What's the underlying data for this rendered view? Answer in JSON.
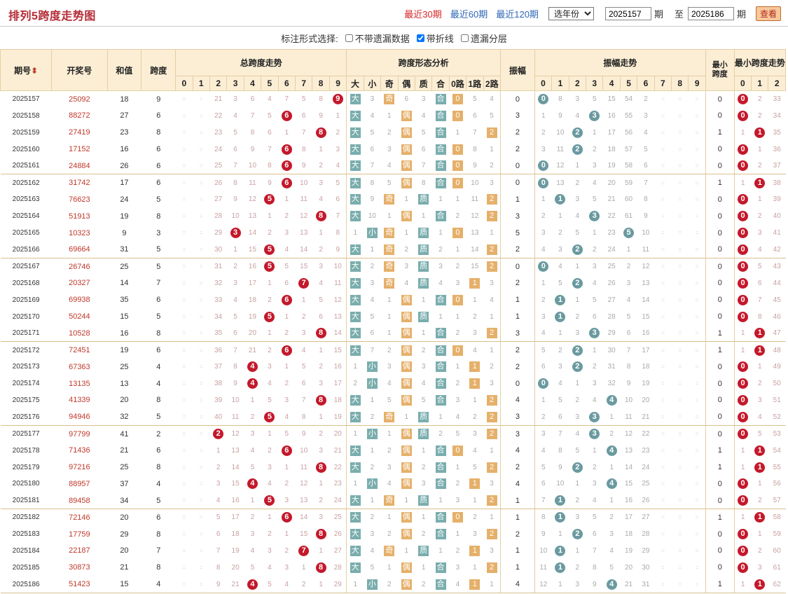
{
  "page": {
    "title": "排列5跨度走势图"
  },
  "nav": {
    "recent30": "最近30期",
    "recent60": "最近60期",
    "recent120": "最近120期",
    "year_select": "选年份",
    "from": "2025157",
    "to": "2025186",
    "qi": "期",
    "zhi": "至",
    "query": "查看"
  },
  "options": {
    "label": "标注形式选择:",
    "opt1": "不带遗漏数据",
    "opt2": "带折线",
    "opt3": "遗漏分层",
    "opt1_checked": false,
    "opt2_checked": true,
    "opt3_checked": false
  },
  "headers": {
    "issue": "期号",
    "draw": "开奖号",
    "sum": "和值",
    "span": "跨度",
    "span_trend": "总跨度走势",
    "shape": "跨度形态分析",
    "amp": "振幅",
    "amp_trend": "振幅走势",
    "min_span": "最小跨度",
    "min_trend": "最小跨度走势",
    "shape_cols": [
      "大",
      "小",
      "奇",
      "偶",
      "质",
      "合",
      "0路",
      "1路",
      "2路"
    ],
    "nums": [
      "0",
      "1",
      "2",
      "3",
      "4",
      "5",
      "6",
      "7",
      "8",
      "9"
    ],
    "min_nums": [
      "0",
      "1",
      "2"
    ]
  },
  "colors": {
    "red": "#c4182b",
    "teal": "#6a9aa0",
    "orange": "#e5b06a"
  },
  "rows": [
    {
      "q": "2025157",
      "n": "25092",
      "h": "18",
      "k": 9,
      "z": 0,
      "m": 0,
      "ks": [
        "⁼",
        "⁼",
        "21",
        "3",
        "6",
        "4",
        "7",
        "5",
        "8",
        "9"
      ],
      "sh": [
        "大",
        "3",
        "奇",
        "6",
        "3",
        "合",
        "0",
        "5",
        "4"
      ],
      "zs": [
        "0",
        "8",
        "3",
        "5",
        "15",
        "54",
        "2",
        "⁼",
        "⁼",
        "⁼"
      ],
      "ms": [
        "0",
        "2",
        "33"
      ]
    },
    {
      "q": "2025158",
      "n": "88272",
      "h": "27",
      "k": 6,
      "z": 3,
      "m": 0,
      "ks": [
        "⁼",
        "⁼",
        "22",
        "4",
        "7",
        "5",
        "6",
        "6",
        "9",
        "1"
      ],
      "sh": [
        "大",
        "4",
        "1",
        "偶",
        "4",
        "合",
        "0",
        "6",
        "5"
      ],
      "zs": [
        "1",
        "9",
        "4",
        "3",
        "16",
        "55",
        "3",
        "⁼",
        "⁼",
        "⁼"
      ],
      "ms": [
        "0",
        "2",
        "34"
      ]
    },
    {
      "q": "2025159",
      "n": "27419",
      "h": "23",
      "k": 8,
      "z": 2,
      "m": 1,
      "ks": [
        "⁼",
        "⁼",
        "23",
        "5",
        "8",
        "6",
        "1",
        "7",
        "8",
        "2"
      ],
      "sh": [
        "大",
        "5",
        "2",
        "偶",
        "5",
        "合",
        "1",
        "7",
        "2"
      ],
      "zs": [
        "2",
        "10",
        "2",
        "1",
        "17",
        "56",
        "4",
        "⁼",
        "⁼",
        "⁼"
      ],
      "ms": [
        "1",
        "1",
        "35"
      ]
    },
    {
      "q": "2025160",
      "n": "17152",
      "h": "16",
      "k": 6,
      "z": 2,
      "m": 0,
      "ks": [
        "⁼",
        "⁼",
        "24",
        "6",
        "9",
        "7",
        "6",
        "8",
        "1",
        "3"
      ],
      "sh": [
        "大",
        "6",
        "3",
        "偶",
        "6",
        "合",
        "0",
        "8",
        "1"
      ],
      "zs": [
        "3",
        "11",
        "2",
        "2",
        "18",
        "57",
        "5",
        "⁼",
        "⁼",
        "⁼"
      ],
      "ms": [
        "0",
        "1",
        "36"
      ]
    },
    {
      "q": "2025161",
      "n": "24884",
      "h": "26",
      "k": 6,
      "z": 0,
      "m": 0,
      "ks": [
        "⁼",
        "⁼",
        "25",
        "7",
        "10",
        "8",
        "6",
        "9",
        "2",
        "4"
      ],
      "sh": [
        "大",
        "7",
        "4",
        "偶",
        "7",
        "合",
        "0",
        "9",
        "2"
      ],
      "zs": [
        "0",
        "12",
        "1",
        "3",
        "19",
        "58",
        "6",
        "⁼",
        "⁼",
        "⁼"
      ],
      "ms": [
        "0",
        "2",
        "37"
      ]
    },
    {
      "q": "2025162",
      "n": "31742",
      "h": "17",
      "k": 6,
      "z": 0,
      "m": 1,
      "ks": [
        "⁼",
        "⁼",
        "26",
        "8",
        "11",
        "9",
        "6",
        "10",
        "3",
        "5"
      ],
      "sh": [
        "大",
        "8",
        "5",
        "偶",
        "8",
        "合",
        "0",
        "10",
        "3"
      ],
      "zs": [
        "0",
        "13",
        "2",
        "4",
        "20",
        "59",
        "7",
        "⁼",
        "⁼",
        "⁼"
      ],
      "ms": [
        "1",
        "1",
        "38"
      ]
    },
    {
      "q": "2025163",
      "n": "76623",
      "h": "24",
      "k": 5,
      "z": 1,
      "m": 0,
      "ks": [
        "⁼",
        "⁼",
        "27",
        "9",
        "12",
        "5",
        "1",
        "11",
        "4",
        "6"
      ],
      "sh": [
        "大",
        "9",
        "奇",
        "1",
        "质",
        "1",
        "1",
        "11",
        "2"
      ],
      "zs": [
        "1",
        "1",
        "3",
        "5",
        "21",
        "60",
        "8",
        "⁼",
        "⁼",
        "⁼"
      ],
      "ms": [
        "0",
        "1",
        "39"
      ]
    },
    {
      "q": "2025164",
      "n": "51913",
      "h": "19",
      "k": 8,
      "z": 3,
      "m": 0,
      "ks": [
        "⁼",
        "⁼",
        "28",
        "10",
        "13",
        "1",
        "2",
        "12",
        "8",
        "7"
      ],
      "sh": [
        "大",
        "10",
        "1",
        "偶",
        "1",
        "合",
        "2",
        "12",
        "2"
      ],
      "zs": [
        "2",
        "1",
        "4",
        "3",
        "22",
        "61",
        "9",
        "⁼",
        "⁼",
        "⁼"
      ],
      "ms": [
        "0",
        "2",
        "40"
      ]
    },
    {
      "q": "2025165",
      "n": "10323",
      "h": "9",
      "k": 3,
      "z": 5,
      "m": 0,
      "ks": [
        "⁼",
        "⁼",
        "29",
        "3",
        "14",
        "2",
        "3",
        "13",
        "1",
        "8"
      ],
      "sh": [
        "1",
        "小",
        "奇",
        "1",
        "质",
        "1",
        "0",
        "13",
        "1"
      ],
      "zs": [
        "3",
        "2",
        "5",
        "1",
        "23",
        "5",
        "10",
        "⁼",
        "⁼",
        "⁼"
      ],
      "ms": [
        "0",
        "3",
        "41"
      ]
    },
    {
      "q": "2025166",
      "n": "69664",
      "h": "31",
      "k": 5,
      "z": 2,
      "m": 0,
      "ks": [
        "⁼",
        "⁼",
        "30",
        "1",
        "15",
        "5",
        "4",
        "14",
        "2",
        "9"
      ],
      "sh": [
        "大",
        "1",
        "奇",
        "2",
        "质",
        "2",
        "1",
        "14",
        "2"
      ],
      "zs": [
        "4",
        "3",
        "2",
        "2",
        "24",
        "1",
        "11",
        "⁼",
        "⁼",
        "⁼"
      ],
      "ms": [
        "0",
        "4",
        "42"
      ]
    },
    {
      "q": "2025167",
      "n": "26746",
      "h": "25",
      "k": 5,
      "z": 0,
      "m": 0,
      "ks": [
        "⁼",
        "⁼",
        "31",
        "2",
        "16",
        "5",
        "5",
        "15",
        "3",
        "10"
      ],
      "sh": [
        "大",
        "2",
        "奇",
        "3",
        "质",
        "3",
        "2",
        "15",
        "2"
      ],
      "zs": [
        "0",
        "4",
        "1",
        "3",
        "25",
        "2",
        "12",
        "⁼",
        "⁼",
        "⁼"
      ],
      "ms": [
        "0",
        "5",
        "43"
      ]
    },
    {
      "q": "2025168",
      "n": "20327",
      "h": "14",
      "k": 7,
      "z": 2,
      "m": 0,
      "ks": [
        "⁼",
        "⁼",
        "32",
        "3",
        "17",
        "1",
        "6",
        "7",
        "4",
        "11"
      ],
      "sh": [
        "大",
        "3",
        "奇",
        "4",
        "质",
        "4",
        "3",
        "1",
        "3"
      ],
      "zs": [
        "1",
        "5",
        "2",
        "4",
        "26",
        "3",
        "13",
        "⁼",
        "⁼",
        "⁼"
      ],
      "ms": [
        "0",
        "6",
        "44"
      ]
    },
    {
      "q": "2025169",
      "n": "69938",
      "h": "35",
      "k": 6,
      "z": 1,
      "m": 0,
      "ks": [
        "⁼",
        "⁼",
        "33",
        "4",
        "18",
        "2",
        "6",
        "1",
        "5",
        "12"
      ],
      "sh": [
        "大",
        "4",
        "1",
        "偶",
        "1",
        "合",
        "0",
        "1",
        "4"
      ],
      "zs": [
        "2",
        "1",
        "1",
        "5",
        "27",
        "4",
        "14",
        "⁼",
        "⁼",
        "⁼"
      ],
      "ms": [
        "0",
        "7",
        "45"
      ]
    },
    {
      "q": "2025170",
      "n": "50244",
      "h": "15",
      "k": 5,
      "z": 1,
      "m": 0,
      "ks": [
        "⁼",
        "⁼",
        "34",
        "5",
        "19",
        "5",
        "1",
        "2",
        "6",
        "13"
      ],
      "sh": [
        "大",
        "5",
        "1",
        "偶",
        "质",
        "1",
        "1",
        "2",
        "1"
      ],
      "zs": [
        "3",
        "1",
        "2",
        "6",
        "28",
        "5",
        "15",
        "⁼",
        "⁼",
        "⁼"
      ],
      "ms": [
        "0",
        "8",
        "46"
      ]
    },
    {
      "q": "2025171",
      "n": "10528",
      "h": "16",
      "k": 8,
      "z": 3,
      "m": 1,
      "ks": [
        "⁼",
        "⁼",
        "35",
        "6",
        "20",
        "1",
        "2",
        "3",
        "8",
        "14"
      ],
      "sh": [
        "大",
        "6",
        "1",
        "偶",
        "1",
        "合",
        "2",
        "3",
        "2"
      ],
      "zs": [
        "4",
        "1",
        "3",
        "3",
        "29",
        "6",
        "16",
        "⁼",
        "⁼",
        "⁼"
      ],
      "ms": [
        "1",
        "1",
        "47"
      ]
    },
    {
      "q": "2025172",
      "n": "72451",
      "h": "19",
      "k": 6,
      "z": 2,
      "m": 1,
      "ks": [
        "⁼",
        "⁼",
        "36",
        "7",
        "21",
        "2",
        "6",
        "4",
        "1",
        "15"
      ],
      "sh": [
        "大",
        "7",
        "2",
        "偶",
        "2",
        "合",
        "0",
        "4",
        "1"
      ],
      "zs": [
        "5",
        "2",
        "2",
        "1",
        "30",
        "7",
        "17",
        "⁼",
        "⁼",
        "⁼"
      ],
      "ms": [
        "1",
        "2",
        "48"
      ]
    },
    {
      "q": "2025173",
      "n": "67363",
      "h": "25",
      "k": 4,
      "z": 2,
      "m": 0,
      "ks": [
        "⁼",
        "⁼",
        "37",
        "8",
        "4",
        "3",
        "1",
        "5",
        "2",
        "16"
      ],
      "sh": [
        "1",
        "小",
        "3",
        "偶",
        "3",
        "合",
        "1",
        "1",
        "2"
      ],
      "zs": [
        "6",
        "3",
        "2",
        "2",
        "31",
        "8",
        "18",
        "⁼",
        "⁼",
        "⁼"
      ],
      "ms": [
        "0",
        "1",
        "49"
      ]
    },
    {
      "q": "2025174",
      "n": "13135",
      "h": "13",
      "k": 4,
      "z": 0,
      "m": 0,
      "ks": [
        "⁼",
        "⁼",
        "38",
        "9",
        "4",
        "4",
        "2",
        "6",
        "3",
        "17"
      ],
      "sh": [
        "2",
        "小",
        "4",
        "偶",
        "4",
        "合",
        "2",
        "1",
        "3"
      ],
      "zs": [
        "0",
        "4",
        "1",
        "3",
        "32",
        "9",
        "19",
        "⁼",
        "⁼",
        "⁼"
      ],
      "ms": [
        "0",
        "2",
        "50"
      ]
    },
    {
      "q": "2025175",
      "n": "41339",
      "h": "20",
      "k": 8,
      "z": 4,
      "m": 0,
      "ks": [
        "⁼",
        "⁼",
        "39",
        "10",
        "1",
        "5",
        "3",
        "7",
        "8",
        "18"
      ],
      "sh": [
        "大",
        "1",
        "5",
        "偶",
        "5",
        "合",
        "3",
        "1",
        "2"
      ],
      "zs": [
        "1",
        "5",
        "2",
        "4",
        "4",
        "10",
        "20",
        "⁼",
        "⁼",
        "⁼"
      ],
      "ms": [
        "0",
        "3",
        "51"
      ]
    },
    {
      "q": "2025176",
      "n": "94946",
      "h": "32",
      "k": 5,
      "z": 3,
      "m": 0,
      "ks": [
        "⁼",
        "⁼",
        "40",
        "11",
        "2",
        "5",
        "4",
        "8",
        "1",
        "19"
      ],
      "sh": [
        "大",
        "2",
        "奇",
        "1",
        "质",
        "1",
        "4",
        "2",
        "2"
      ],
      "zs": [
        "2",
        "6",
        "3",
        "3",
        "1",
        "11",
        "21",
        "⁼",
        "⁼",
        "⁼"
      ],
      "ms": [
        "0",
        "4",
        "52"
      ]
    },
    {
      "q": "2025177",
      "n": "97799",
      "h": "41",
      "k": 2,
      "z": 3,
      "m": 0,
      "ks": [
        "⁼",
        "⁼",
        "2",
        "12",
        "3",
        "1",
        "5",
        "9",
        "2",
        "20"
      ],
      "sh": [
        "1",
        "小",
        "1",
        "偶",
        "质",
        "2",
        "5",
        "3",
        "2"
      ],
      "zs": [
        "3",
        "7",
        "4",
        "3",
        "2",
        "12",
        "22",
        "⁼",
        "⁼",
        "⁼"
      ],
      "ms": [
        "0",
        "5",
        "53"
      ]
    },
    {
      "q": "2025178",
      "n": "71436",
      "h": "21",
      "k": 6,
      "z": 4,
      "m": 1,
      "ks": [
        "⁼",
        "⁼",
        "1",
        "13",
        "4",
        "2",
        "6",
        "10",
        "3",
        "21"
      ],
      "sh": [
        "大",
        "1",
        "2",
        "偶",
        "1",
        "合",
        "0",
        "4",
        "1"
      ],
      "zs": [
        "4",
        "8",
        "5",
        "1",
        "4",
        "13",
        "23",
        "⁼",
        "⁼",
        "⁼"
      ],
      "ms": [
        "1",
        "1",
        "54"
      ]
    },
    {
      "q": "2025179",
      "n": "97216",
      "h": "25",
      "k": 8,
      "z": 2,
      "m": 1,
      "ks": [
        "⁼",
        "⁼",
        "2",
        "14",
        "5",
        "3",
        "1",
        "11",
        "8",
        "22"
      ],
      "sh": [
        "大",
        "2",
        "3",
        "偶",
        "2",
        "合",
        "1",
        "5",
        "2"
      ],
      "zs": [
        "5",
        "9",
        "2",
        "2",
        "1",
        "14",
        "24",
        "⁼",
        "⁼",
        "⁼"
      ],
      "ms": [
        "1",
        "2",
        "55"
      ]
    },
    {
      "q": "2025180",
      "n": "88957",
      "h": "37",
      "k": 4,
      "z": 4,
      "m": 0,
      "ks": [
        "⁼",
        "⁼",
        "3",
        "15",
        "4",
        "4",
        "2",
        "12",
        "1",
        "23"
      ],
      "sh": [
        "1",
        "小",
        "4",
        "偶",
        "3",
        "合",
        "2",
        "1",
        "3"
      ],
      "zs": [
        "6",
        "10",
        "1",
        "3",
        "4",
        "15",
        "25",
        "⁼",
        "⁼",
        "⁼"
      ],
      "ms": [
        "0",
        "1",
        "56"
      ]
    },
    {
      "q": "2025181",
      "n": "89458",
      "h": "34",
      "k": 5,
      "z": 1,
      "m": 0,
      "ks": [
        "⁼",
        "⁼",
        "4",
        "16",
        "1",
        "5",
        "3",
        "13",
        "2",
        "24"
      ],
      "sh": [
        "大",
        "1",
        "奇",
        "1",
        "质",
        "1",
        "3",
        "1",
        "2"
      ],
      "zs": [
        "7",
        "1",
        "2",
        "4",
        "1",
        "16",
        "26",
        "⁼",
        "⁼",
        "⁼"
      ],
      "ms": [
        "0",
        "2",
        "57"
      ]
    },
    {
      "q": "2025182",
      "n": "72146",
      "h": "20",
      "k": 6,
      "z": 1,
      "m": 1,
      "ks": [
        "⁼",
        "⁼",
        "5",
        "17",
        "2",
        "1",
        "6",
        "14",
        "3",
        "25"
      ],
      "sh": [
        "大",
        "2",
        "1",
        "偶",
        "1",
        "合",
        "0",
        "2",
        "1"
      ],
      "zs": [
        "8",
        "1",
        "3",
        "5",
        "2",
        "17",
        "27",
        "⁼",
        "⁼",
        "⁼"
      ],
      "ms": [
        "1",
        "1",
        "58"
      ]
    },
    {
      "q": "2025183",
      "n": "17759",
      "h": "29",
      "k": 8,
      "z": 2,
      "m": 0,
      "ks": [
        "⁼",
        "⁼",
        "6",
        "18",
        "3",
        "2",
        "1",
        "15",
        "8",
        "26"
      ],
      "sh": [
        "大",
        "3",
        "2",
        "偶",
        "2",
        "合",
        "1",
        "3",
        "2"
      ],
      "zs": [
        "9",
        "1",
        "2",
        "6",
        "3",
        "18",
        "28",
        "⁼",
        "⁼",
        "⁼"
      ],
      "ms": [
        "0",
        "1",
        "59"
      ]
    },
    {
      "q": "2025184",
      "n": "22187",
      "h": "20",
      "k": 7,
      "z": 1,
      "m": 0,
      "ks": [
        "⁼",
        "⁼",
        "7",
        "19",
        "4",
        "3",
        "2",
        "7",
        "1",
        "27"
      ],
      "sh": [
        "大",
        "4",
        "奇",
        "1",
        "质",
        "1",
        "2",
        "1",
        "3"
      ],
      "zs": [
        "10",
        "1",
        "1",
        "7",
        "4",
        "19",
        "29",
        "⁼",
        "⁼",
        "⁼"
      ],
      "ms": [
        "0",
        "2",
        "60"
      ]
    },
    {
      "q": "2025185",
      "n": "30873",
      "h": "21",
      "k": 8,
      "z": 1,
      "m": 0,
      "ks": [
        "⁼",
        "⁼",
        "8",
        "20",
        "5",
        "4",
        "3",
        "1",
        "8",
        "28"
      ],
      "sh": [
        "大",
        "5",
        "1",
        "偶",
        "1",
        "合",
        "3",
        "1",
        "2"
      ],
      "zs": [
        "11",
        "1",
        "2",
        "8",
        "5",
        "20",
        "30",
        "⁼",
        "⁼",
        "⁼"
      ],
      "ms": [
        "0",
        "3",
        "61"
      ]
    },
    {
      "q": "2025186",
      "n": "51423",
      "h": "15",
      "k": 4,
      "z": 4,
      "m": 1,
      "ks": [
        "⁼",
        "⁼",
        "9",
        "21",
        "4",
        "5",
        "4",
        "2",
        "1",
        "29"
      ],
      "sh": [
        "1",
        "小",
        "2",
        "偶",
        "2",
        "合",
        "4",
        "1",
        "1"
      ],
      "zs": [
        "12",
        "1",
        "3",
        "9",
        "4",
        "21",
        "31",
        "⁼",
        "⁼",
        "⁼"
      ],
      "ms": [
        "1",
        "1",
        "62"
      ]
    }
  ]
}
